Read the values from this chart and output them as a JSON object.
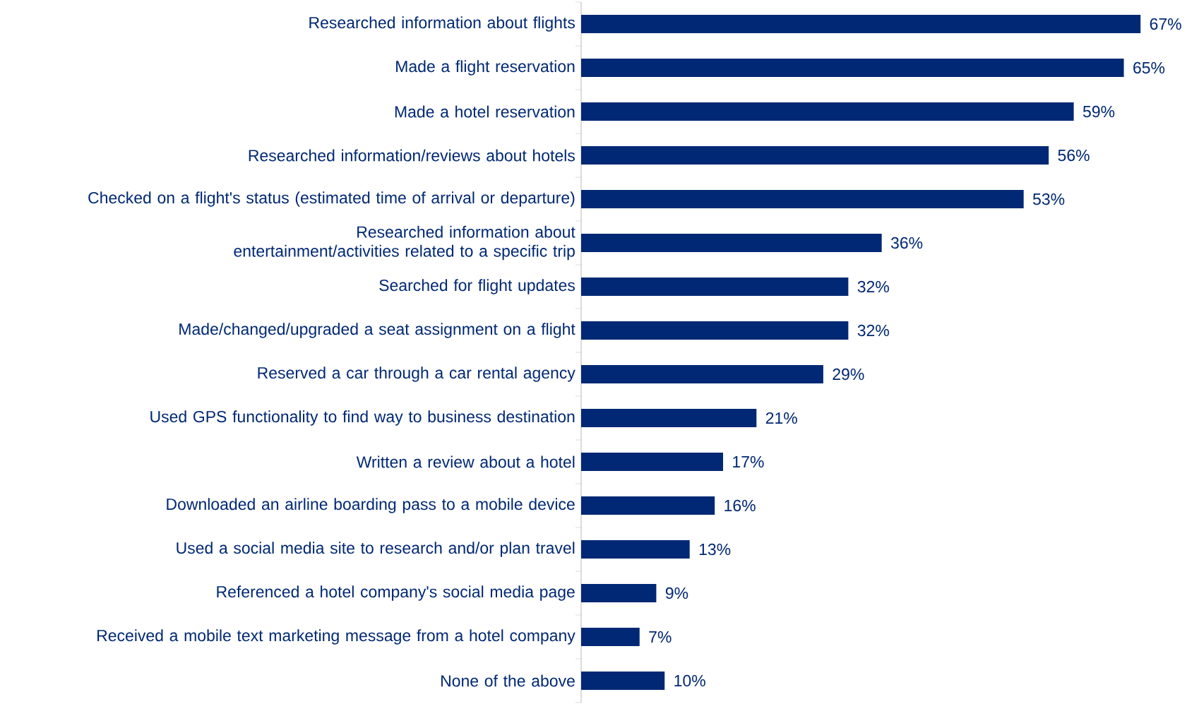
{
  "chart_data": {
    "type": "bar",
    "orientation": "horizontal",
    "categories": [
      "Researched information about flights",
      "Made a flight reservation",
      "Made a hotel reservation",
      "Researched information/reviews about hotels",
      "Checked on a flight's status (estimated time of arrival or departure)",
      "Researched information about entertainment/activities related to a specific trip",
      "Searched for flight updates",
      "Made/changed/upgraded a seat assignment on a flight",
      "Reserved a car through a car rental agency",
      "Used GPS functionality to find way to business destination",
      "Written a review about a hotel",
      "Downloaded an airline boarding pass to a mobile device",
      "Used a social media site to research and/or plan travel",
      "Referenced a hotel company's social media page",
      "Received a mobile text marketing message from a hotel company",
      "None of the above"
    ],
    "values": [
      67,
      65,
      59,
      56,
      53,
      36,
      32,
      32,
      29,
      21,
      17,
      16,
      13,
      9,
      7,
      10
    ],
    "value_labels": [
      "67%",
      "65%",
      "59%",
      "56%",
      "53%",
      "36%",
      "32%",
      "32%",
      "29%",
      "21%",
      "17%",
      "16%",
      "13%",
      "9%",
      "7%",
      "10%"
    ],
    "color": "#002874"
  }
}
